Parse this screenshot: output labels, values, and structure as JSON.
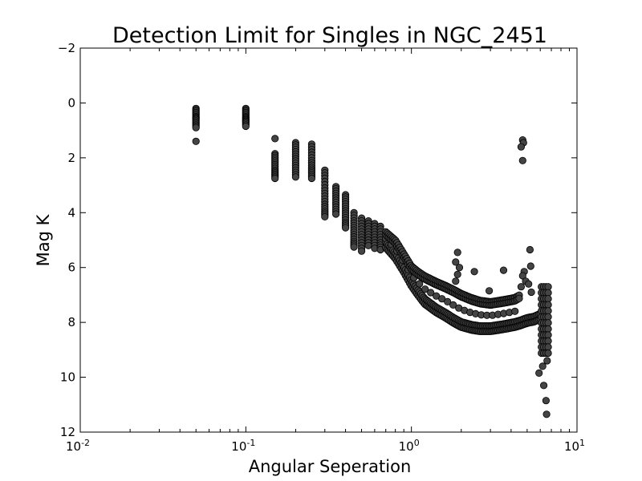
{
  "chart_data": {
    "type": "scatter",
    "title": "Detection Limit for Singles in NGC_2451",
    "xlabel": "Angular Seperation",
    "ylabel": "Mag K",
    "xscale": "log",
    "xlim": [
      0.01,
      10
    ],
    "ylim": [
      12,
      -2
    ],
    "y_inverted": true,
    "grid": false,
    "legend": "none",
    "marker_color": "#444444",
    "x_ticks": [
      {
        "base": "10",
        "exp": "-2"
      },
      {
        "base": "10",
        "exp": "-1"
      },
      {
        "base": "10",
        "exp": "0"
      },
      {
        "base": "10",
        "exp": "1"
      }
    ],
    "x_tick_values": [
      0.01,
      0.1,
      1,
      10
    ],
    "y_ticks": [
      "−2",
      "0",
      "2",
      "4",
      "6",
      "8",
      "10",
      "12"
    ],
    "y_tick_values": [
      -2,
      0,
      2,
      4,
      6,
      8,
      10,
      12
    ],
    "columns": [
      {
        "x": 0.05,
        "y": [
          0.2,
          0.35,
          0.5,
          0.6,
          0.75,
          0.9
        ],
        "outliers": [
          1.4
        ]
      },
      {
        "x": 0.1,
        "y": [
          0.2,
          0.35,
          0.5,
          0.6,
          0.7,
          0.85
        ]
      },
      {
        "x": 0.15,
        "y": [
          1.85,
          2.05,
          2.25,
          2.45,
          2.6,
          2.75
        ],
        "outliers": [
          1.3
        ]
      },
      {
        "x": 0.2,
        "y": [
          1.45,
          1.7,
          1.95,
          2.2,
          2.45,
          2.7
        ]
      },
      {
        "x": 0.25,
        "y": [
          1.5,
          1.8,
          2.1,
          2.35,
          2.55,
          2.75
        ]
      },
      {
        "x": 0.3,
        "y": [
          2.45,
          2.75,
          3.1,
          3.4,
          3.7,
          3.95,
          4.15
        ]
      },
      {
        "x": 0.35,
        "y": [
          3.05,
          3.3,
          3.55,
          3.8,
          4.05
        ]
      },
      {
        "x": 0.4,
        "y": [
          3.35,
          3.6,
          3.85,
          4.1,
          4.35,
          4.55
        ]
      },
      {
        "x": 0.45,
        "y": [
          4.0,
          4.3,
          4.55,
          4.8,
          5.05,
          5.25
        ]
      },
      {
        "x": 0.5,
        "y": [
          4.2,
          4.5,
          4.8,
          5.1,
          5.4
        ]
      },
      {
        "x": 0.55,
        "y": [
          4.3,
          4.6,
          4.9,
          5.2
        ]
      },
      {
        "x": 0.6,
        "y": [
          4.4,
          4.7,
          5.0,
          5.3
        ]
      },
      {
        "x": 0.65,
        "y": [
          4.5,
          4.8,
          5.1,
          5.35
        ]
      }
    ],
    "band_upper": {
      "x": [
        0.7,
        0.8,
        0.9,
        1.0,
        1.1,
        1.2,
        1.4,
        1.6,
        1.8,
        2.0,
        2.3,
        2.6,
        3.0,
        3.4,
        3.8,
        4.2,
        4.5
      ],
      "y": [
        4.7,
        5.0,
        5.5,
        5.95,
        6.15,
        6.3,
        6.5,
        6.65,
        6.8,
        6.95,
        7.1,
        7.2,
        7.25,
        7.2,
        7.15,
        7.1,
        7.0
      ]
    },
    "band_lower": {
      "x": [
        0.7,
        0.8,
        0.9,
        1.0,
        1.1,
        1.2,
        1.4,
        1.6,
        1.8,
        2.0,
        2.3,
        2.6,
        3.0,
        3.4,
        3.8,
        4.2,
        4.5,
        5.0,
        5.5,
        6.0
      ],
      "y": [
        5.2,
        5.6,
        6.1,
        6.6,
        6.95,
        7.25,
        7.55,
        7.75,
        7.95,
        8.1,
        8.2,
        8.25,
        8.25,
        8.2,
        8.15,
        8.1,
        8.05,
        7.95,
        7.9,
        7.8
      ]
    },
    "edge_column": {
      "x": [
        6.1,
        6.3,
        6.5,
        6.7
      ],
      "y_range": [
        6.7,
        9.2
      ]
    },
    "scattered_points": [
      {
        "x": 1.9,
        "y": 5.45
      },
      {
        "x": 1.85,
        "y": 5.8
      },
      {
        "x": 1.95,
        "y": 6.0
      },
      {
        "x": 1.9,
        "y": 6.25
      },
      {
        "x": 1.85,
        "y": 6.5
      },
      {
        "x": 2.4,
        "y": 6.15
      },
      {
        "x": 2.95,
        "y": 6.85
      },
      {
        "x": 3.6,
        "y": 6.1
      },
      {
        "x": 4.7,
        "y": 1.35
      },
      {
        "x": 4.75,
        "y": 1.45
      },
      {
        "x": 4.6,
        "y": 1.6
      },
      {
        "x": 4.7,
        "y": 2.1
      },
      {
        "x": 5.2,
        "y": 5.35
      },
      {
        "x": 5.25,
        "y": 5.95
      },
      {
        "x": 4.8,
        "y": 6.15
      },
      {
        "x": 4.7,
        "y": 6.3
      },
      {
        "x": 4.9,
        "y": 6.5
      },
      {
        "x": 4.6,
        "y": 6.7
      },
      {
        "x": 5.1,
        "y": 6.6
      },
      {
        "x": 5.3,
        "y": 6.9
      },
      {
        "x": 6.2,
        "y": 9.6
      },
      {
        "x": 6.3,
        "y": 10.3
      },
      {
        "x": 6.5,
        "y": 10.85
      },
      {
        "x": 6.55,
        "y": 11.35
      },
      {
        "x": 5.9,
        "y": 9.85
      },
      {
        "x": 6.6,
        "y": 9.4
      }
    ]
  }
}
